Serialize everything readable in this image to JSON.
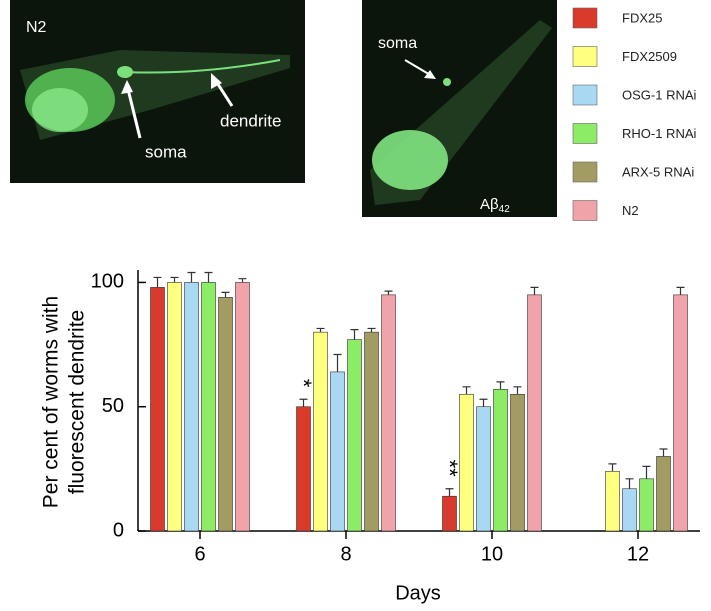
{
  "panels": [
    {
      "labels": [
        "N2",
        "soma",
        "dendrite"
      ]
    },
    {
      "labels": [
        "soma",
        "Aβ",
        "42"
      ]
    }
  ],
  "chart_data": {
    "type": "bar",
    "ylabel": [
      "Per cent of worms with",
      "fluorescent dendrite"
    ],
    "xlabel": "Days",
    "categories": [
      "6",
      "8",
      "10",
      "12"
    ],
    "ylim": [
      0,
      105
    ],
    "yticks": [
      0,
      50,
      100
    ],
    "series": [
      {
        "name": "FDX25",
        "color": "#d93a2c",
        "values": [
          98,
          50,
          14,
          0
        ],
        "errors": [
          4,
          3,
          3,
          null
        ]
      },
      {
        "name": "FDX2509",
        "color": "#ffff80",
        "values": [
          100,
          80,
          55,
          24
        ],
        "errors": [
          2,
          1.5,
          3,
          3
        ]
      },
      {
        "name": "OSG-1 RNAi",
        "color": "#a9d9f2",
        "values": [
          100,
          64,
          50,
          17
        ],
        "errors": [
          4,
          7,
          3,
          4
        ]
      },
      {
        "name": "RHO-1 RNAi",
        "color": "#8cec66",
        "values": [
          100,
          77,
          57,
          21
        ],
        "errors": [
          4,
          4,
          3,
          5
        ]
      },
      {
        "name": "ARX-5 RNAi",
        "color": "#a29c62",
        "values": [
          94,
          80,
          55,
          30
        ],
        "errors": [
          2,
          1.5,
          3,
          3
        ]
      },
      {
        "name": "N2",
        "color": "#f0a4aa",
        "values": [
          100,
          95,
          95,
          95
        ],
        "errors": [
          1.5,
          1.5,
          3,
          3
        ]
      }
    ],
    "annotations": [
      "*",
      "**"
    ]
  }
}
